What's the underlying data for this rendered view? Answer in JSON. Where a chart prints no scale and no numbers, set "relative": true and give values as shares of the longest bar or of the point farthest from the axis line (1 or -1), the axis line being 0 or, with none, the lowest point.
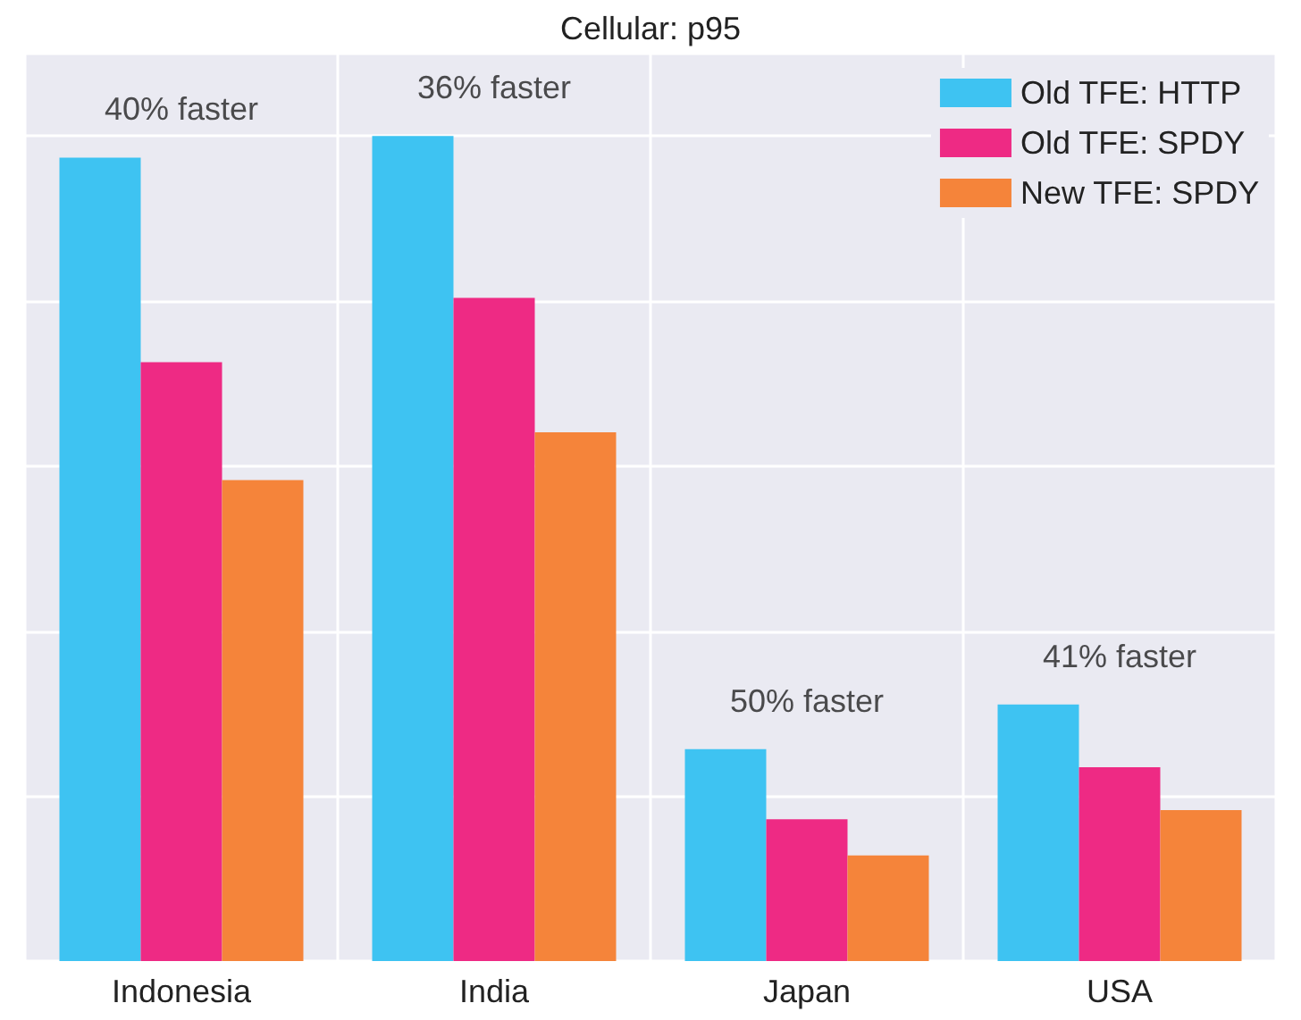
{
  "chart_data": {
    "type": "bar",
    "title": "Cellular: p95",
    "relative": true,
    "categories": [
      "Indonesia",
      "India",
      "Japan",
      "USA"
    ],
    "series": [
      {
        "name": "Old TFE: HTTP",
        "color": "#3ec3f2",
        "values": [
          0.974,
          1,
          0.257,
          0.311
        ]
      },
      {
        "name": "Old TFE: SPDY",
        "color": "#ee2a84",
        "values": [
          0.726,
          0.804,
          0.172,
          0.235
        ]
      },
      {
        "name": "New TFE: SPDY",
        "color": "#f5843a",
        "values": [
          0.583,
          0.641,
          0.128,
          0.183
        ]
      }
    ],
    "annotations": [
      "40% faster",
      "36% faster",
      "50% faster",
      "41% faster"
    ],
    "grid": true,
    "legend": "top right"
  }
}
